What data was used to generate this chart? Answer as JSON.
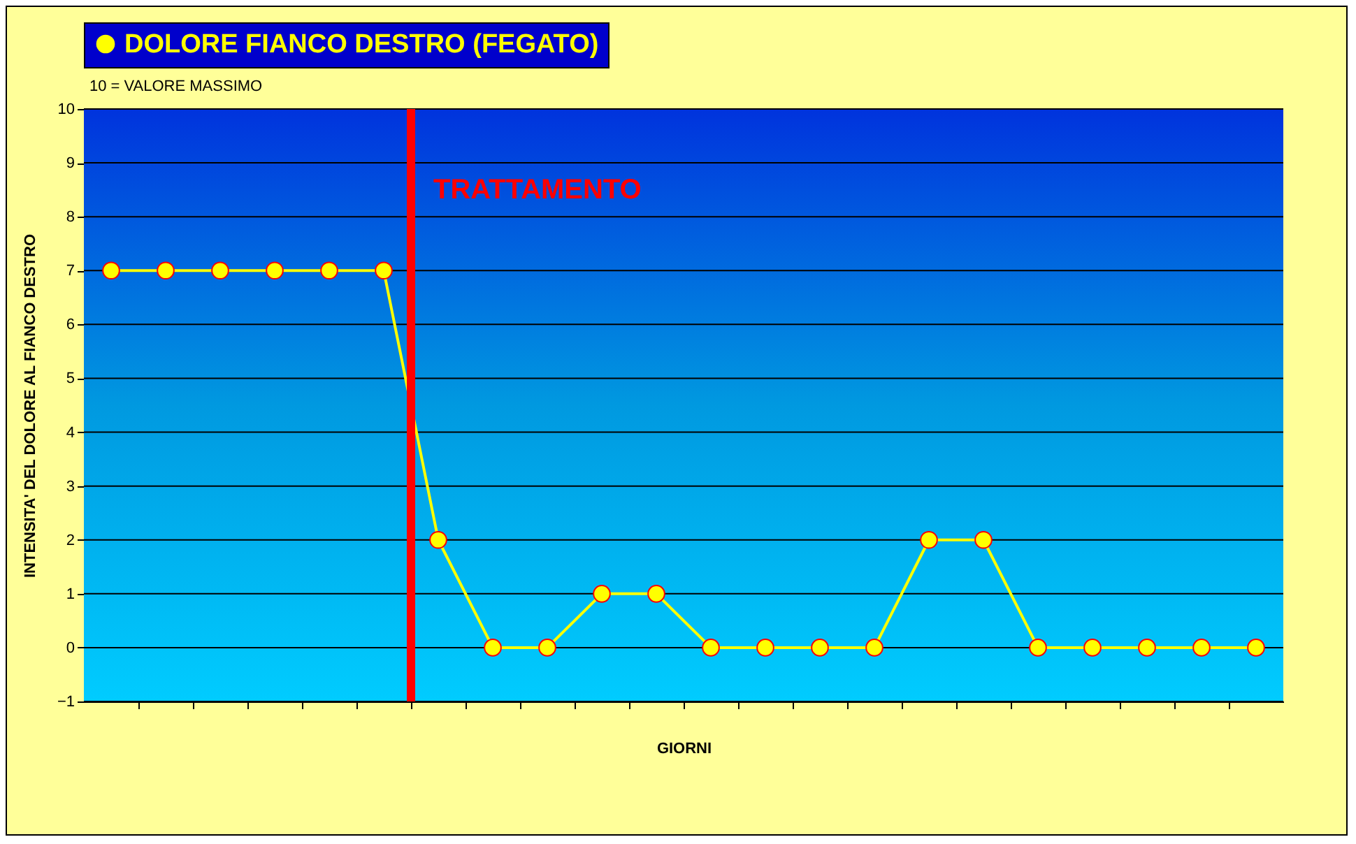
{
  "chart_data": {
    "type": "line",
    "xlabel": "GIORNI",
    "ylabel": "INTENSITA' DEL DOLORE AL FIANCO DESTRO",
    "annotations": [
      "10 = VALORE MASSIMO",
      "TRATTAMENTO"
    ],
    "categories": [
      null,
      null,
      null,
      null,
      null,
      null,
      null,
      null,
      null,
      null,
      null,
      null,
      null,
      null,
      null,
      null,
      null,
      null,
      null,
      null,
      null,
      null
    ],
    "series": [
      {
        "name": "DOLORE FIANCO DESTRO (FEGATO)",
        "color": "#ffff00",
        "values": [
          7,
          7,
          7,
          7,
          7,
          7,
          2,
          0,
          0,
          1,
          1,
          0,
          0,
          0,
          0,
          2,
          2,
          0,
          0,
          0,
          0,
          0
        ]
      }
    ],
    "ylim": [
      -1,
      10
    ],
    "yticks": [
      -1,
      0,
      1,
      2,
      3,
      4,
      5,
      6,
      7,
      8,
      9,
      10
    ],
    "grid": "y",
    "legend": "top",
    "marker": "circle",
    "line_style": "solid"
  }
}
